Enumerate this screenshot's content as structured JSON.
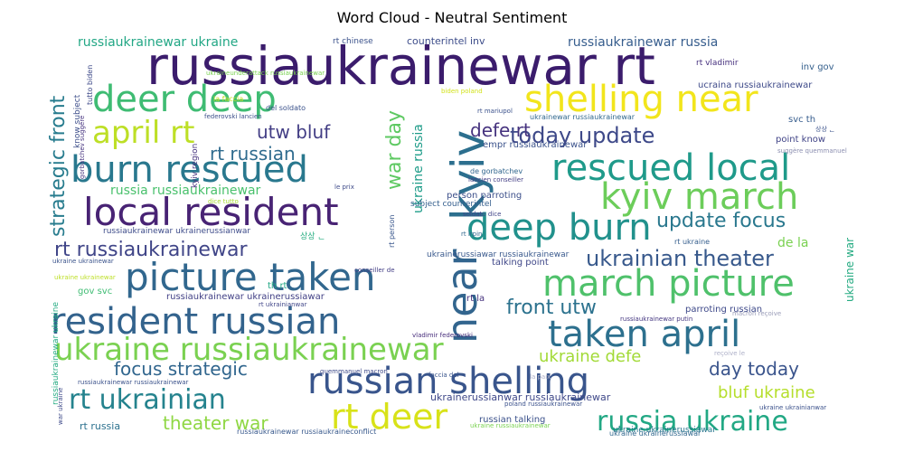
{
  "title": "Word Cloud - Neutral Sentiment",
  "words": [
    {
      "text": "russiaukrainewar rt",
      "color": "#3b1c6c"
    },
    {
      "text": "kyiv",
      "color": "#2c6f8e"
    },
    {
      "text": "near",
      "color": "#32658e"
    },
    {
      "text": "shelling near",
      "color": "#f2e51c"
    },
    {
      "text": "deer deep",
      "color": "#3fbc73"
    },
    {
      "text": "april rt",
      "color": "#bddf26"
    },
    {
      "text": "burn rescued",
      "color": "#29788e"
    },
    {
      "text": "rescued local",
      "color": "#1f9a8a"
    },
    {
      "text": "local resident",
      "color": "#482374"
    },
    {
      "text": "kyiv march",
      "color": "#6ccd5a"
    },
    {
      "text": "deep burn",
      "color": "#21918c"
    },
    {
      "text": "picture taken",
      "color": "#31678e"
    },
    {
      "text": "march picture",
      "color": "#4fc16b"
    },
    {
      "text": "resident russian",
      "color": "#33638d"
    },
    {
      "text": "taken april",
      "color": "#2d708e"
    },
    {
      "text": "ukraine russiaukrainewar",
      "color": "#7ad151"
    },
    {
      "text": "russian shelling",
      "color": "#39558c"
    },
    {
      "text": "rt deer",
      "color": "#d8e219"
    },
    {
      "text": "rt ukrainian",
      "color": "#25838e"
    },
    {
      "text": "russia ukraine",
      "color": "#22a884"
    },
    {
      "text": "today update",
      "color": "#3e4989"
    },
    {
      "text": "ukrainian theater",
      "color": "#38598c"
    },
    {
      "text": "update focus",
      "color": "#2a788e"
    },
    {
      "text": "rt russiaukrainewar",
      "color": "#404588"
    },
    {
      "text": "strategic front",
      "color": "#287c8e"
    },
    {
      "text": "war day",
      "color": "#5ec962"
    },
    {
      "text": "utw bluf",
      "color": "#433e85"
    },
    {
      "text": "rt russian",
      "color": "#2f6b8e"
    },
    {
      "text": "defe rt",
      "color": "#46337f"
    },
    {
      "text": "front utw",
      "color": "#2c728e"
    },
    {
      "text": "focus strategic",
      "color": "#31668e"
    },
    {
      "text": "day today",
      "color": "#3a548c"
    },
    {
      "text": "ukraine defe",
      "color": "#a2da37"
    },
    {
      "text": "bluf ukraine",
      "color": "#b5de2b"
    },
    {
      "text": "theater war",
      "color": "#8fd744"
    },
    {
      "text": "russiaukrainewar ukraine",
      "color": "#22a785"
    },
    {
      "text": "russiaukrainewar russia",
      "color": "#365d8d"
    },
    {
      "text": "russia russiaukrainewar",
      "color": "#4ac16d"
    },
    {
      "text": "de la",
      "color": "#7ad151"
    },
    {
      "text": "ukraine russia",
      "color": "#1e9c89"
    },
    {
      "text": "ukraine war",
      "color": "#25ab82"
    },
    {
      "text": "counterintel inv",
      "color": "#3d4d8a"
    },
    {
      "text": "rt chinese",
      "color": "#3b528b"
    },
    {
      "text": "rt vladimir",
      "color": "#46307e"
    },
    {
      "text": "inv gov",
      "color": "#35608d"
    },
    {
      "text": "ucraina russiaukrainewar",
      "color": "#3e4a89"
    },
    {
      "text": "ukrainewar russiaukrainewar",
      "color": "#31688e"
    },
    {
      "text": "svc th",
      "color": "#365c8d"
    },
    {
      "text": "point know",
      "color": "#414487"
    },
    {
      "text": "empr russiaukrainewar",
      "color": "#3b528b"
    },
    {
      "text": "de gorbatchev",
      "color": "#31668e"
    },
    {
      "text": "lancien conseiller",
      "color": "#433e85"
    },
    {
      "text": "person parroting",
      "color": "#3c4f8a"
    },
    {
      "text": "subject counterintel",
      "color": "#355f8d"
    },
    {
      "text": "soldato dice",
      "color": "#404588"
    },
    {
      "text": "rt irpin",
      "color": "#31678e"
    },
    {
      "text": "rt ukraine",
      "color": "#355e8d"
    },
    {
      "text": "russiaukrainewar ukrainerussianwar",
      "color": "#3e4c8a"
    },
    {
      "text": "ukrainerussiawar russiaukrainewar",
      "color": "#38588c"
    },
    {
      "text": "talking point",
      "color": "#3f4788"
    },
    {
      "text": "russiaukrainewar ukrainerussiawar",
      "color": "#424186"
    },
    {
      "text": "rt la",
      "color": "#46327e"
    },
    {
      "text": "parroting russian",
      "color": "#3e4989"
    },
    {
      "text": "russiaukrainewar putin",
      "color": "#453781"
    },
    {
      "text": "ukrainerussianwar russiaukrainewar",
      "color": "#3f4889"
    },
    {
      "text": "russian talking",
      "color": "#3b518b"
    },
    {
      "text": "ukraine ukrainerussiawar",
      "color": "#2a768e"
    },
    {
      "text": "rt russia",
      "color": "#2c718e"
    },
    {
      "text": "know subject",
      "color": "#3d4e8a"
    },
    {
      "text": "tutto biden",
      "color": "#3e4a89"
    },
    {
      "text": "gorbatchev suggère",
      "color": "#46337f"
    },
    {
      "text": "kyiv region",
      "color": "#46327e"
    },
    {
      "text": "ukraineunderattack russiaukrainewar",
      "color": "#7ad151"
    },
    {
      "text": "la faccia",
      "color": "#c2df23"
    },
    {
      "text": "del soldato",
      "color": "#3b528b"
    },
    {
      "text": "federovski lancien",
      "color": "#3c4f8a"
    },
    {
      "text": "biden poland",
      "color": "#d2e21b"
    },
    {
      "text": "rt mariupol",
      "color": "#3b518b"
    },
    {
      "text": "suggère quemmanuel",
      "color": "#8c8fb0"
    },
    {
      "text": "dice tutto",
      "color": "#a8db34"
    },
    {
      "text": "le prix",
      "color": "#3e4a89"
    },
    {
      "text": "rt person",
      "color": "#39568c"
    },
    {
      "text": "conseiller de",
      "color": "#433e85"
    },
    {
      "text": "th rt",
      "color": "#22a785"
    },
    {
      "text": "gov svc",
      "color": "#3fbc73"
    },
    {
      "text": "rt ukrainianwar",
      "color": "#404688"
    },
    {
      "text": "ukraine ukrainewar",
      "color": "#3a538b"
    },
    {
      "text": "vladimir federovski",
      "color": "#472d7b"
    },
    {
      "text": "quemmanuel macron",
      "color": "#3e4a89"
    },
    {
      "text": "faccia del",
      "color": "#39558c"
    },
    {
      "text": "macron reçoive",
      "color": "#9a9cb8"
    },
    {
      "text": "reçoive le",
      "color": "#aeb0c8"
    },
    {
      "text": "la paix",
      "color": "#aeb0c8"
    },
    {
      "text": "russiaukrainewar russiaukrainewar",
      "color": "#3b528b"
    },
    {
      "text": "russiaukrainewar russiaukraineconflict",
      "color": "#38598c"
    },
    {
      "text": "poland russiaukrainewar",
      "color": "#3b518b"
    },
    {
      "text": "war ukraine",
      "color": "#3e4a89"
    },
    {
      "text": "ukraine ukrainewar",
      "color": "#bddf26"
    },
    {
      "text": "ukraine ukrainianwar",
      "color": "#3b518b"
    },
    {
      "text": "ukraine russiaukrainewar",
      "color": "#7ad151"
    },
    {
      "text": "russiaukrainewar ukraine",
      "color": "#25ab82"
    },
    {
      "text": "ukraine ukrainerussiawar",
      "color": "#31688e"
    },
    {
      "text": "상상 ᆫ",
      "color": "#3b528b"
    },
    {
      "text": "상상 ᆫ",
      "color": "#26ad81"
    }
  ]
}
